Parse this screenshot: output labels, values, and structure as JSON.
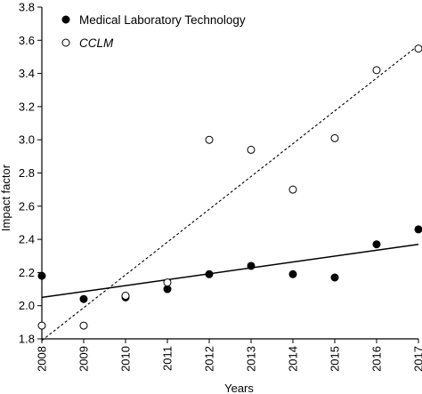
{
  "chart_data": {
    "type": "scatter",
    "xlabel": "Years",
    "ylabel": "Impact factor",
    "xlim": [
      2008,
      2017
    ],
    "ylim": [
      1.8,
      3.8
    ],
    "x_ticks": [
      "2008",
      "2009",
      "2010",
      "2011",
      "2012",
      "2013",
      "2014",
      "2015",
      "2016",
      "2017"
    ],
    "y_ticks": [
      "1.8",
      "2.0",
      "2.2",
      "2.4",
      "2.6",
      "2.8",
      "3.0",
      "3.2",
      "3.4",
      "3.6",
      "3.8"
    ],
    "grid": false,
    "legend_position": "top-left",
    "series": [
      {
        "name": "Medical Laboratory Technology",
        "marker": "filled-circle",
        "color": "#000000",
        "trendline": "solid",
        "trend_start": [
          2008,
          2.05
        ],
        "trend_end": [
          2017,
          2.37
        ],
        "x": [
          2008,
          2009,
          2010,
          2011,
          2012,
          2013,
          2014,
          2015,
          2016,
          2017
        ],
        "y": [
          2.18,
          2.04,
          2.05,
          2.1,
          2.19,
          2.24,
          2.19,
          2.17,
          2.37,
          2.46
        ]
      },
      {
        "name": "CCLM",
        "marker": "open-circle",
        "color": "#000000",
        "trendline": "dashed",
        "trend_start": [
          2008,
          1.79
        ],
        "trend_end": [
          2017,
          3.57
        ],
        "x": [
          2008,
          2009,
          2010,
          2011,
          2012,
          2013,
          2014,
          2015,
          2016,
          2017
        ],
        "y": [
          1.88,
          1.88,
          2.06,
          2.14,
          3.0,
          2.94,
          2.7,
          3.01,
          3.42,
          3.55
        ]
      }
    ]
  }
}
